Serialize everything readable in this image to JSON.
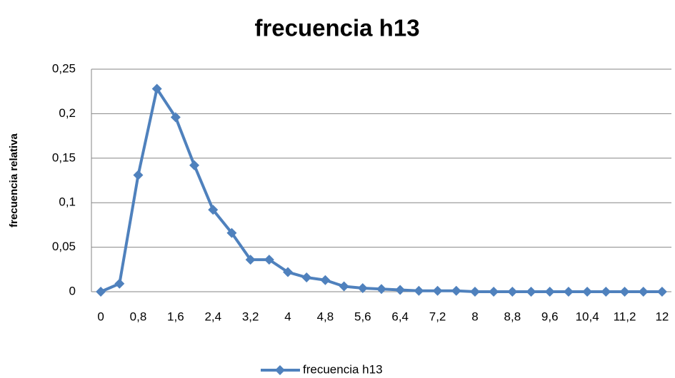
{
  "chart_data": {
    "type": "line",
    "title": "frecuencia h13",
    "y_label": "frecuencia relativa",
    "categories": [
      "0",
      null,
      "0,8",
      null,
      "1,6",
      null,
      "2,4",
      null,
      "3,2",
      null,
      "4",
      null,
      "4,8",
      null,
      "5,6",
      null,
      "6,4",
      null,
      "7,2",
      null,
      "8",
      null,
      "8,8",
      null,
      "9,6",
      null,
      "10,4",
      null,
      "11,2",
      null,
      "12"
    ],
    "series": [
      {
        "name": "frecuencia h13",
        "color": "#4f81bd",
        "values": [
          0,
          0.009,
          0.131,
          0.228,
          0.196,
          0.142,
          0.092,
          0.066,
          0.036,
          0.036,
          0.022,
          0.016,
          0.013,
          0.006,
          0.004,
          0.003,
          0.002,
          0.001,
          0.001,
          0.001,
          0,
          0,
          0,
          0,
          0,
          0,
          0,
          0,
          0,
          0,
          0
        ]
      }
    ],
    "ylim": [
      0,
      0.25
    ],
    "yticks": [
      0,
      {
        "value": 0.05,
        "label": "0,05"
      },
      {
        "value": 0.1,
        "label": "0,1"
      },
      {
        "value": 0.15,
        "label": "0,15"
      },
      {
        "value": 0.2,
        "label": "0,2"
      },
      {
        "value": 0.25,
        "label": "0,25"
      }
    ],
    "grid": true,
    "legend": "bottom"
  }
}
